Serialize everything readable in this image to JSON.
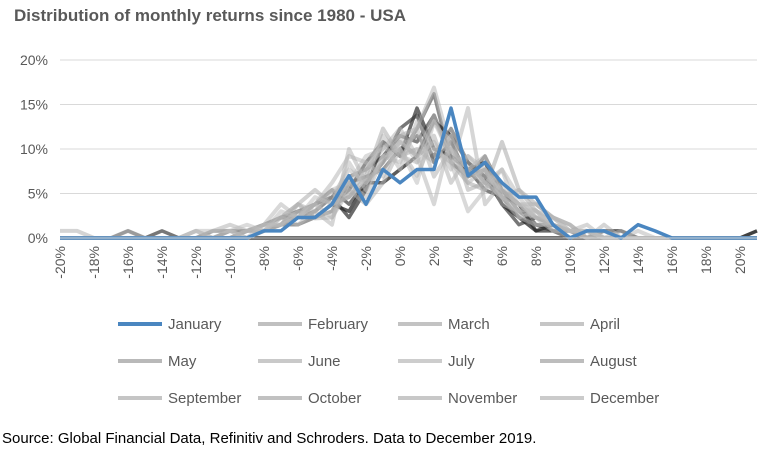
{
  "chart_data": {
    "type": "line",
    "title": "Distribution of monthly returns since 1980 - USA",
    "xlabel": "",
    "ylabel": "",
    "x": [
      -20,
      -19,
      -18,
      -17,
      -16,
      -15,
      -14,
      -13,
      -12,
      -11,
      -10,
      -9,
      -8,
      -7,
      -6,
      -5,
      -4,
      -3,
      -2,
      -1,
      0,
      1,
      2,
      3,
      4,
      5,
      6,
      7,
      8,
      9,
      10,
      11,
      12,
      13,
      14,
      15,
      16,
      17,
      18,
      19,
      20,
      21
    ],
    "x_tick_labels": [
      "-20%",
      "-18%",
      "-16%",
      "-14%",
      "-12%",
      "-10%",
      "-8%",
      "-6%",
      "-4%",
      "-2%",
      "0%",
      "2%",
      "4%",
      "6%",
      "8%",
      "10%",
      "12%",
      "14%",
      "16%",
      "18%",
      "20%"
    ],
    "y_tick_labels": [
      "0%",
      "5%",
      "10%",
      "15%",
      "20%"
    ],
    "ylim": [
      0,
      20
    ],
    "y_ticks": [
      0,
      5,
      10,
      15,
      20
    ],
    "grid": "horizontal",
    "legend_position": "bottom",
    "series": [
      {
        "name": "January",
        "color": "#4a86c0",
        "values": [
          0,
          0,
          0,
          0,
          0,
          0,
          0,
          0,
          0,
          0,
          0,
          0,
          0.8,
          0.8,
          2.3,
          2.3,
          3.8,
          7.0,
          3.8,
          7.7,
          6.2,
          7.7,
          7.7,
          14.6,
          7.0,
          8.5,
          6.2,
          4.6,
          4.6,
          1.5,
          0,
          0.8,
          0.8,
          0,
          1.5,
          0.8,
          0,
          0,
          0,
          0,
          0,
          0
        ]
      },
      {
        "name": "February",
        "color": "#b0b0b0",
        "values": [
          0.8,
          0.8,
          0,
          0,
          0.8,
          0,
          0,
          0,
          0,
          0,
          0,
          0,
          0.8,
          1.5,
          3.0,
          2.2,
          2.3,
          5.4,
          3.8,
          6.2,
          10.0,
          7.0,
          11.5,
          6.2,
          9.2,
          7.7,
          5.4,
          3.8,
          2.3,
          1.5,
          0.8,
          0,
          0.8,
          0,
          0,
          0,
          0,
          0,
          0,
          0,
          0,
          0
        ]
      },
      {
        "name": "March",
        "color": "#b4b4b4",
        "values": [
          0,
          0,
          0,
          0,
          0,
          0,
          0,
          0,
          0,
          0.8,
          0.8,
          0,
          0.8,
          2.3,
          1.5,
          3.0,
          5.4,
          4.6,
          7.7,
          10.0,
          12.3,
          9.2,
          10.8,
          7.7,
          14.6,
          3.8,
          6.2,
          3.8,
          3.8,
          2.3,
          0.8,
          1.5,
          0,
          0,
          0,
          0,
          0,
          0,
          0,
          0,
          0,
          0
        ]
      },
      {
        "name": "April",
        "color": "#b8b8b8",
        "values": [
          0,
          0,
          0,
          0,
          0,
          0,
          0,
          0,
          0.8,
          0,
          0,
          0.8,
          1.5,
          3.8,
          2.3,
          3.8,
          2.3,
          6.2,
          4.6,
          9.2,
          8.5,
          12.3,
          16.9,
          10.0,
          7.7,
          9.2,
          4.6,
          3.1,
          3.1,
          0.8,
          0,
          0,
          0.8,
          0,
          0.8,
          0,
          0,
          0,
          0,
          0,
          0,
          0
        ]
      },
      {
        "name": "May",
        "color": "#a8a8a8",
        "values": [
          0,
          0,
          0,
          0,
          0,
          0,
          0,
          0,
          0,
          0,
          0,
          0.8,
          0.8,
          1.5,
          3.8,
          2.3,
          3.8,
          4.6,
          6.2,
          8.5,
          10.8,
          9.2,
          13.8,
          8.5,
          6.2,
          5.4,
          10.8,
          5.4,
          3.8,
          2.3,
          1.5,
          0,
          0,
          0,
          0,
          0,
          0,
          0,
          0,
          0,
          0,
          0
        ]
      },
      {
        "name": "June",
        "color": "#bcbcbc",
        "values": [
          0,
          0,
          0,
          0,
          0,
          0,
          0,
          0,
          0,
          0,
          0,
          0,
          0.8,
          1.5,
          2.3,
          3.0,
          4.6,
          7.7,
          6.2,
          11.5,
          9.2,
          8.5,
          10.0,
          8.5,
          9.2,
          6.9,
          5.4,
          3.8,
          2.3,
          1.5,
          0.8,
          0.8,
          0,
          0,
          0,
          0,
          0,
          0,
          0,
          0,
          0,
          0
        ]
      },
      {
        "name": "July",
        "color": "#c0c0c0",
        "values": [
          0,
          0,
          0,
          0,
          0,
          0,
          0,
          0,
          0,
          0,
          0,
          0.8,
          0.8,
          2.3,
          2.3,
          3.8,
          5.4,
          6.2,
          9.2,
          10.0,
          11.5,
          8.5,
          13.1,
          10.0,
          7.7,
          6.2,
          4.6,
          3.8,
          3.1,
          1.5,
          0.8,
          0.8,
          0,
          0,
          0,
          0,
          0,
          0,
          0,
          0,
          0,
          0
        ]
      },
      {
        "name": "August",
        "color": "#acacac",
        "values": [
          0,
          0,
          0,
          0,
          0,
          0,
          0,
          0,
          0,
          0,
          0,
          0.8,
          1.5,
          2.3,
          3.8,
          5.4,
          3.8,
          4.6,
          6.9,
          12.3,
          9.2,
          10.0,
          8.5,
          11.5,
          5.4,
          6.2,
          4.6,
          5.4,
          3.0,
          2.3,
          1.5,
          0,
          0,
          0,
          0,
          0,
          0,
          0,
          0,
          0,
          0,
          0
        ]
      },
      {
        "name": "September",
        "color": "#b6b6b6",
        "values": [
          0,
          0,
          0,
          0,
          0,
          0,
          0,
          0,
          0.8,
          0,
          0.8,
          0.8,
          1.5,
          1.5,
          3.0,
          3.8,
          6.2,
          9.2,
          8.5,
          6.9,
          10.8,
          9.2,
          3.8,
          11.5,
          8.5,
          6.2,
          7.7,
          2.3,
          1.5,
          1.5,
          0.8,
          0,
          0,
          0.8,
          0,
          0,
          0,
          0,
          0,
          0,
          0,
          0
        ]
      },
      {
        "name": "October",
        "color": "#b2b2b2",
        "values": [
          0,
          0,
          0,
          0,
          0,
          0,
          0,
          0,
          0,
          0.8,
          1.5,
          0.8,
          1.5,
          2.3,
          3.8,
          3.0,
          1.5,
          10.0,
          6.2,
          8.5,
          11.5,
          12.3,
          6.9,
          10.0,
          6.2,
          7.7,
          3.8,
          3.0,
          2.3,
          0.8,
          0.8,
          0,
          1.5,
          0,
          0,
          0,
          0,
          0,
          0,
          0,
          0,
          0
        ]
      },
      {
        "name": "November",
        "color": "#bababa",
        "values": [
          0,
          0,
          0,
          0,
          0,
          0,
          0,
          0,
          0,
          0,
          0.8,
          0,
          1.5,
          1.5,
          2.3,
          2.3,
          3.0,
          6.9,
          7.7,
          10.8,
          7.7,
          13.1,
          10.0,
          8.5,
          3.0,
          5.4,
          7.7,
          4.6,
          2.3,
          2.3,
          0.8,
          0.8,
          0,
          0,
          0,
          0,
          0,
          0,
          0,
          0,
          0,
          0
        ]
      },
      {
        "name": "December",
        "color": "#bebebe",
        "values": [
          0,
          0,
          0,
          0,
          0,
          0,
          0,
          0,
          0.8,
          0.8,
          0.8,
          1.5,
          0.8,
          3.0,
          2.3,
          4.6,
          3.8,
          8.5,
          5.4,
          9.2,
          10.0,
          6.2,
          13.1,
          9.2,
          6.9,
          7.7,
          4.6,
          2.3,
          3.0,
          1.5,
          0,
          0.8,
          0,
          0,
          0,
          0,
          0,
          0,
          0,
          0,
          0,
          0
        ]
      }
    ],
    "overlay_series": [
      {
        "color": "#555555",
        "values": [
          0,
          0,
          0,
          0,
          0.8,
          0,
          0,
          0,
          0,
          0,
          0.8,
          0.8,
          1.5,
          2.3,
          2.3,
          3.8,
          4.6,
          6.9,
          7.7,
          9.2,
          11.5,
          10.8,
          13.8,
          9.2,
          7.7,
          5.4,
          4.6,
          2.3,
          1.5,
          0.8,
          0,
          0,
          0.8,
          0,
          0,
          0,
          0,
          0,
          0,
          0,
          0,
          0
        ]
      },
      {
        "color": "#4a4a4a",
        "values": [
          0,
          0,
          0,
          0,
          0,
          0,
          0.8,
          0,
          0,
          0.8,
          0.8,
          0.8,
          1.5,
          2.3,
          3.0,
          3.8,
          5.4,
          3.8,
          6.2,
          8.5,
          12.3,
          13.8,
          8.5,
          10.8,
          6.9,
          7.7,
          3.8,
          1.5,
          2.3,
          1.5,
          0,
          0.8,
          0,
          0,
          0,
          0,
          0,
          0,
          0,
          0,
          0,
          0
        ]
      },
      {
        "color": "#6a6a6a",
        "values": [
          0,
          0,
          0,
          0,
          0,
          0,
          0,
          0,
          0,
          0,
          0,
          0,
          0.8,
          1.5,
          3.0,
          2.3,
          3.8,
          5.4,
          8.5,
          10.8,
          9.2,
          12.3,
          16.2,
          8.5,
          6.9,
          9.2,
          5.4,
          3.8,
          1.5,
          0.8,
          0.8,
          0,
          0,
          0,
          0,
          0,
          0,
          0,
          0,
          0,
          0,
          0
        ]
      },
      {
        "color": "#7a7a7a",
        "values": [
          0,
          0,
          0,
          0,
          0,
          0,
          0,
          0,
          0,
          0,
          0.8,
          0.8,
          0.8,
          1.5,
          1.5,
          2.3,
          3.0,
          6.2,
          6.9,
          7.7,
          10.0,
          11.5,
          9.2,
          12.3,
          8.5,
          6.2,
          5.4,
          3.0,
          1.5,
          1.5,
          0.8,
          0,
          0,
          0,
          0,
          0,
          0,
          0,
          0,
          0,
          0,
          0
        ]
      },
      {
        "color": "#3a3a3a",
        "values": [
          0,
          0,
          0,
          0,
          0,
          0,
          0,
          0,
          0,
          0,
          0,
          0.8,
          1.5,
          2.3,
          2.3,
          3.0,
          4.6,
          2.3,
          5.4,
          10.8,
          9.2,
          14.6,
          10.0,
          9.2,
          7.7,
          8.5,
          4.6,
          3.8,
          0.8,
          0.8,
          0,
          0.8,
          0,
          0,
          0,
          0,
          0,
          0,
          0,
          0,
          0,
          0
        ]
      },
      {
        "color": "#262626",
        "values": [
          0,
          0,
          0,
          0,
          0,
          0,
          0,
          0,
          0,
          0,
          0,
          0,
          0.8,
          1.5,
          2.3,
          2.3,
          3.8,
          3.0,
          6.2,
          6.2,
          7.7,
          9.2,
          13.1,
          11.5,
          8.5,
          6.9,
          3.8,
          2.3,
          0.8,
          1.5,
          0.8,
          0,
          0.8,
          0.8,
          0,
          0,
          0,
          0,
          0,
          0,
          0,
          0
        ]
      },
      {
        "color": "#000000",
        "values": [
          0,
          0,
          0,
          0,
          0,
          0,
          0,
          0,
          0,
          0,
          0,
          0,
          0,
          0,
          0,
          0,
          0,
          0,
          0,
          0,
          0,
          0,
          0,
          0,
          0,
          0,
          0,
          0,
          0,
          0,
          0,
          0,
          0,
          0,
          0,
          0,
          0,
          0,
          0,
          0,
          0,
          0.8
        ]
      }
    ]
  },
  "footer": {
    "source": "Source: Global Financial Data, Refinitiv and Schroders. Data to December 2019."
  }
}
